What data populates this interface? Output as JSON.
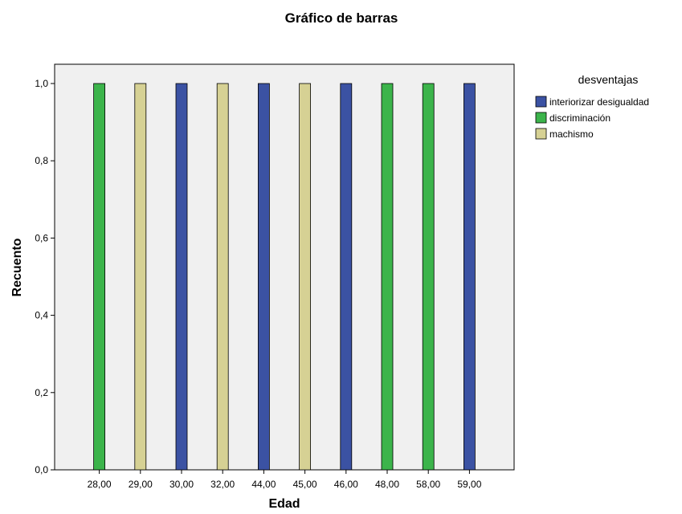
{
  "chart_data": {
    "type": "bar",
    "title": "Gráfico de barras",
    "xlabel": "Edad",
    "ylabel": "Recuento",
    "categories": [
      "28,00",
      "29,00",
      "30,00",
      "32,00",
      "44,00",
      "45,00",
      "46,00",
      "48,00",
      "58,00",
      "59,00"
    ],
    "ylim": [
      0,
      1.0
    ],
    "yticks": [
      "0,0",
      "0,2",
      "0,4",
      "0,6",
      "0,8",
      "1,0"
    ],
    "legend_title": "desventajas",
    "legend_position": "top-right",
    "grid": false,
    "series": [
      {
        "name": "interiorizar desigualdad",
        "color": "#3b52a3",
        "values": [
          0,
          0,
          1,
          0,
          1,
          0,
          1,
          0,
          0,
          1
        ]
      },
      {
        "name": "discriminación",
        "color": "#3cb44b",
        "values": [
          1,
          0,
          0,
          0,
          0,
          0,
          0,
          1,
          1,
          0
        ]
      },
      {
        "name": "machismo",
        "color": "#d6d194",
        "values": [
          0,
          1,
          0,
          1,
          0,
          1,
          0,
          0,
          0,
          0
        ]
      }
    ],
    "plot_background": "#f0f0f0"
  }
}
